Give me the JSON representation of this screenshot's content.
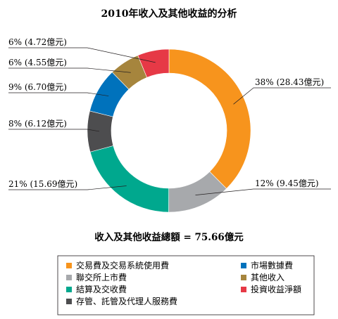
{
  "chart_data": {
    "type": "pie",
    "title": "2010年收入及其他收益的分析",
    "total_label": "收入及其他收益總額 = 75.66億元",
    "slices": [
      {
        "name": "交易費及交易系統使用費",
        "value": 28.43,
        "percent": 38,
        "label": "38% (28.43億元)",
        "color": "#f7941d"
      },
      {
        "name": "聯交所上市費",
        "value": 9.45,
        "percent": 12,
        "label": "12% (9.45億元)",
        "color": "#a7a9ac"
      },
      {
        "name": "結算及交收費",
        "value": 15.69,
        "percent": 21,
        "label": "21% (15.69億元)",
        "color": "#00a88e"
      },
      {
        "name": "存管、託管及代理人服務費",
        "value": 6.12,
        "percent": 8,
        "label": "8% (6.12億元)",
        "color": "#4d4d4f"
      },
      {
        "name": "市場數據費",
        "value": 6.7,
        "percent": 9,
        "label": "9% (6.70億元)",
        "color": "#0072bc"
      },
      {
        "name": "其他收入",
        "value": 4.55,
        "percent": 6,
        "label": "6% (4.55億元)",
        "color": "#a6853d"
      },
      {
        "name": "投資收益淨額",
        "value": 4.72,
        "percent": 6,
        "label": "6% (4.72億元)",
        "color": "#e63946"
      }
    ],
    "legend_placement": "bottom"
  }
}
